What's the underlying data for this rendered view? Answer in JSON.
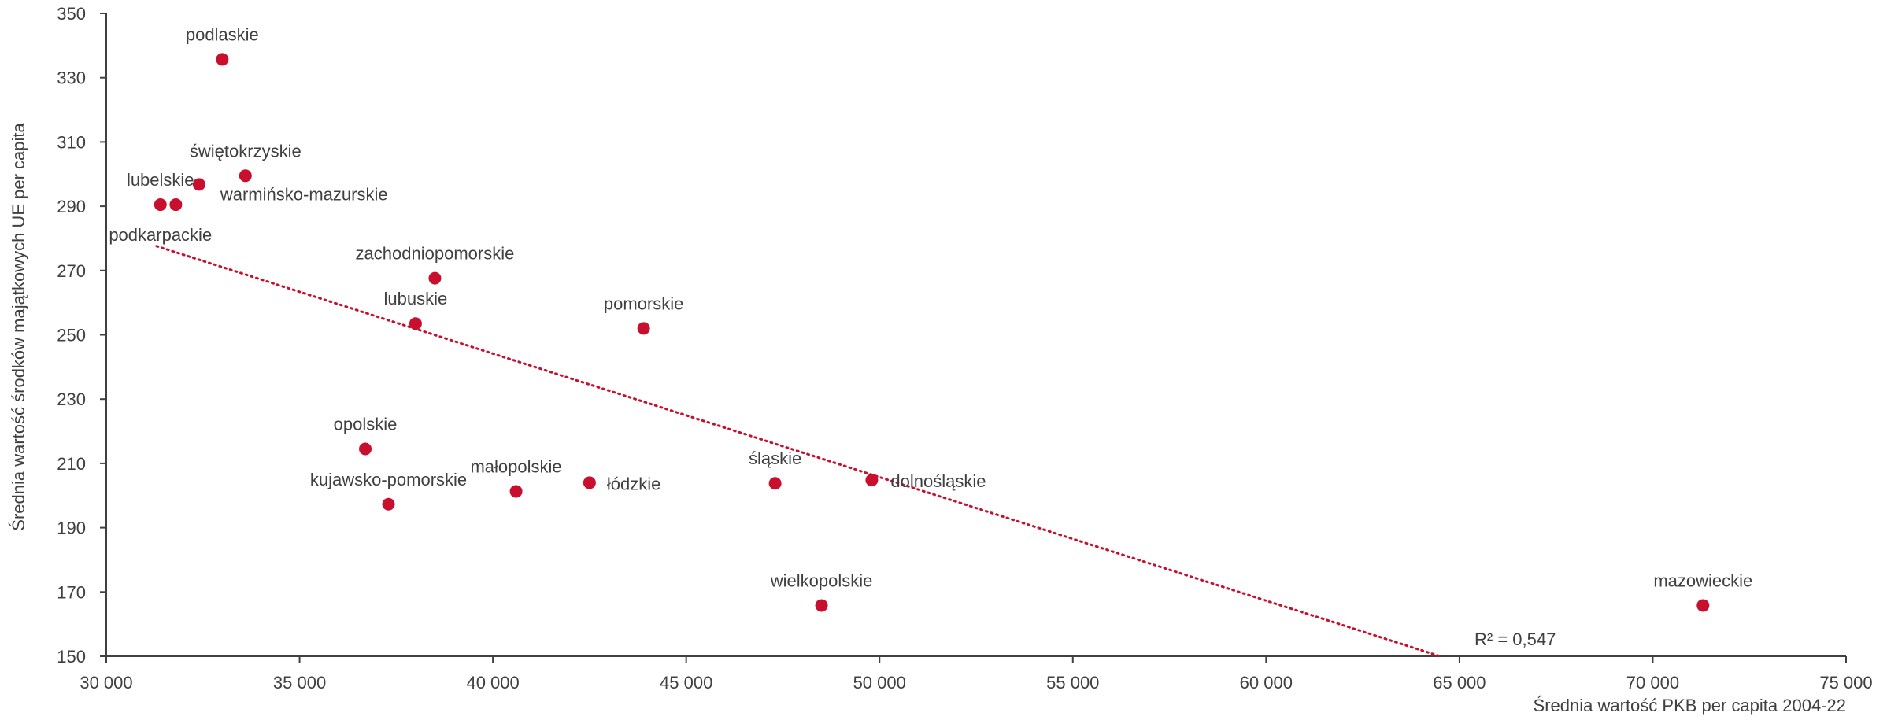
{
  "chart_data": {
    "type": "scatter",
    "xlabel": "Średnia wartość PKB per capita 2004-22",
    "ylabel": "Średnia wartość środków majątkowych UE per capita",
    "xlim": [
      30000,
      75000
    ],
    "ylim": [
      150,
      350
    ],
    "x_ticks": [
      30000,
      35000,
      40000,
      45000,
      50000,
      55000,
      60000,
      65000,
      70000,
      75000
    ],
    "x_tick_labels": [
      "30 000",
      "35 000",
      "40 000",
      "45 000",
      "50 000",
      "55 000",
      "60 000",
      "65 000",
      "70 000",
      "75 000"
    ],
    "y_ticks": [
      150,
      170,
      190,
      210,
      230,
      250,
      270,
      290,
      310,
      330,
      350
    ],
    "y_tick_labels": [
      "150",
      "170",
      "190",
      "210",
      "230",
      "250",
      "270",
      "290",
      "310",
      "330",
      "350"
    ],
    "point_color": "#c8102e",
    "trendline": {
      "type": "linear",
      "style": "dotted",
      "color": "#c8102e",
      "x": [
        31300,
        64500
      ],
      "y": [
        277.6,
        150
      ],
      "r2_label": "R² = 0,547"
    },
    "points": [
      {
        "label": "podlaskie",
        "x": 33000,
        "y": 335.7
      },
      {
        "label": "świętokrzyskie",
        "x": 33600,
        "y": 299.5
      },
      {
        "label": "warmińsko-mazurskie",
        "x": 32400,
        "y": 296.8
      },
      {
        "label": "lubelskie",
        "x": 31400,
        "y": 290.5
      },
      {
        "label": "podkarpackie",
        "x": 31800,
        "y": 290.5
      },
      {
        "label": "zachodniopomorskie",
        "x": 38500,
        "y": 267.6
      },
      {
        "label": "lubuskie",
        "x": 38000,
        "y": 253.5
      },
      {
        "label": "pomorskie",
        "x": 43900,
        "y": 252
      },
      {
        "label": "opolskie",
        "x": 36700,
        "y": 214.5
      },
      {
        "label": "kujawsko-pomorskie",
        "x": 37300,
        "y": 197.3
      },
      {
        "label": "małopolskie",
        "x": 40600,
        "y": 201.3
      },
      {
        "label": "łódzkie",
        "x": 42500,
        "y": 204
      },
      {
        "label": "śląskie",
        "x": 47300,
        "y": 203.8
      },
      {
        "label": "dolnośląskie",
        "x": 49800,
        "y": 204.8
      },
      {
        "label": "wielkopolskie",
        "x": 48500,
        "y": 165.8
      },
      {
        "label": "mazowieckie",
        "x": 71300,
        "y": 165.8
      }
    ]
  }
}
